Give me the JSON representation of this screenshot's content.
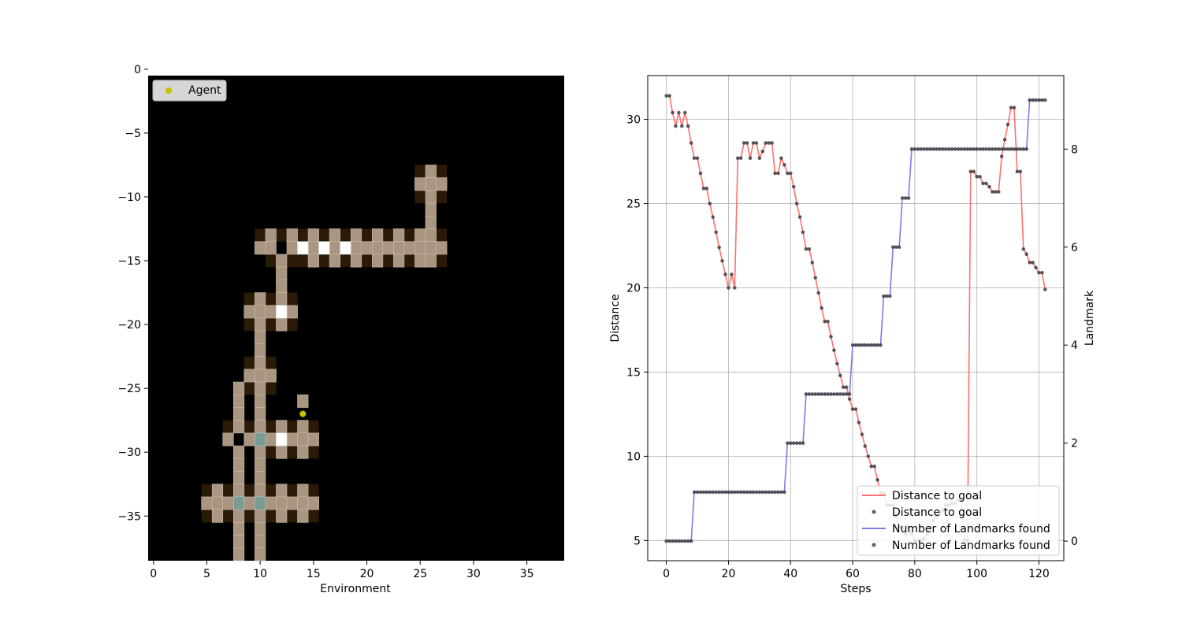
{
  "chart_data": [
    {
      "type": "heatmap",
      "xlabel": "Environment",
      "ylabel": "",
      "xlim": [
        -0.5,
        38.5
      ],
      "ylim": [
        -0.5,
        -38.5
      ],
      "xticks": [
        0,
        5,
        10,
        15,
        20,
        25,
        30,
        35
      ],
      "yticks": [
        0,
        -5,
        -10,
        -15,
        -20,
        -25,
        -30,
        -35
      ],
      "legend": {
        "entries": [
          "Agent"
        ],
        "placement": "top-left"
      },
      "agent": {
        "x": 14,
        "y": -27,
        "label": "Agent"
      },
      "colors": {
        "background": "#000000",
        "wall": "#2a1a08",
        "floor": "#a99580",
        "landmark": "#ffffff",
        "special": "#7a9a94",
        "agent": "#c4c400"
      },
      "walls": [
        [
          25,
          -8
        ],
        [
          27,
          -8
        ],
        [
          25,
          -10
        ],
        [
          27,
          -10
        ],
        [
          10,
          -13
        ],
        [
          12,
          -13
        ],
        [
          14,
          -13
        ],
        [
          16,
          -13
        ],
        [
          18,
          -13
        ],
        [
          20,
          -13
        ],
        [
          22,
          -13
        ],
        [
          24,
          -13
        ],
        [
          27,
          -13
        ],
        [
          11,
          -15
        ],
        [
          13,
          -15
        ],
        [
          14,
          -15
        ],
        [
          16,
          -15
        ],
        [
          18,
          -15
        ],
        [
          20,
          -15
        ],
        [
          22,
          -15
        ],
        [
          24,
          -15
        ],
        [
          27,
          -15
        ],
        [
          9,
          -18
        ],
        [
          11,
          -18
        ],
        [
          13,
          -18
        ],
        [
          9,
          -20
        ],
        [
          11,
          -20
        ],
        [
          13,
          -20
        ],
        [
          9,
          -23
        ],
        [
          11,
          -23
        ],
        [
          9,
          -25
        ],
        [
          11,
          -25
        ],
        [
          7,
          -28
        ],
        [
          9,
          -28
        ],
        [
          11,
          -28
        ],
        [
          13,
          -28
        ],
        [
          15,
          -28
        ],
        [
          11,
          -30
        ],
        [
          13,
          -30
        ],
        [
          15,
          -30
        ],
        [
          5,
          -33
        ],
        [
          7,
          -33
        ],
        [
          9,
          -33
        ],
        [
          11,
          -33
        ],
        [
          13,
          -33
        ],
        [
          15,
          -33
        ],
        [
          5,
          -35
        ],
        [
          7,
          -35
        ],
        [
          9,
          -35
        ],
        [
          11,
          -35
        ],
        [
          13,
          -35
        ],
        [
          15,
          -35
        ]
      ],
      "floor": [
        [
          26,
          -8
        ],
        [
          25,
          -9
        ],
        [
          26,
          -9
        ],
        [
          27,
          -9
        ],
        [
          26,
          -10
        ],
        [
          26,
          -11
        ],
        [
          26,
          -12
        ],
        [
          11,
          -13
        ],
        [
          13,
          -13
        ],
        [
          15,
          -13
        ],
        [
          17,
          -13
        ],
        [
          19,
          -13
        ],
        [
          21,
          -13
        ],
        [
          23,
          -13
        ],
        [
          25,
          -13
        ],
        [
          26,
          -13
        ],
        [
          10,
          -14
        ],
        [
          11,
          -14
        ],
        [
          13,
          -14
        ],
        [
          15,
          -14
        ],
        [
          17,
          -14
        ],
        [
          19,
          -14
        ],
        [
          20,
          -14
        ],
        [
          21,
          -14
        ],
        [
          22,
          -14
        ],
        [
          23,
          -14
        ],
        [
          24,
          -14
        ],
        [
          25,
          -14
        ],
        [
          26,
          -14
        ],
        [
          27,
          -14
        ],
        [
          12,
          -15
        ],
        [
          15,
          -15
        ],
        [
          17,
          -15
        ],
        [
          19,
          -15
        ],
        [
          21,
          -15
        ],
        [
          23,
          -15
        ],
        [
          25,
          -15
        ],
        [
          26,
          -15
        ],
        [
          12,
          -16
        ],
        [
          12,
          -17
        ],
        [
          10,
          -18
        ],
        [
          12,
          -18
        ],
        [
          9,
          -19
        ],
        [
          10,
          -19
        ],
        [
          11,
          -19
        ],
        [
          13,
          -19
        ],
        [
          10,
          -20
        ],
        [
          12,
          -20
        ],
        [
          10,
          -21
        ],
        [
          10,
          -22
        ],
        [
          10,
          -23
        ],
        [
          10,
          -24
        ],
        [
          9,
          -24
        ],
        [
          11,
          -24
        ],
        [
          10,
          -25
        ],
        [
          8,
          -25
        ],
        [
          8,
          -26
        ],
        [
          10,
          -26
        ],
        [
          14,
          -26
        ],
        [
          8,
          -27
        ],
        [
          10,
          -27
        ],
        [
          8,
          -28
        ],
        [
          10,
          -28
        ],
        [
          14,
          -28
        ],
        [
          10,
          -28
        ],
        [
          12,
          -28
        ],
        [
          7,
          -29
        ],
        [
          9,
          -29
        ],
        [
          11,
          -29
        ],
        [
          13,
          -29
        ],
        [
          14,
          -29
        ],
        [
          15,
          -29
        ],
        [
          8,
          -30
        ],
        [
          10,
          -30
        ],
        [
          12,
          -30
        ],
        [
          14,
          -30
        ],
        [
          8,
          -31
        ],
        [
          10,
          -31
        ],
        [
          8,
          -32
        ],
        [
          10,
          -32
        ],
        [
          6,
          -33
        ],
        [
          8,
          -33
        ],
        [
          10,
          -33
        ],
        [
          12,
          -33
        ],
        [
          14,
          -33
        ],
        [
          5,
          -34
        ],
        [
          6,
          -34
        ],
        [
          7,
          -34
        ],
        [
          9,
          -34
        ],
        [
          11,
          -34
        ],
        [
          12,
          -34
        ],
        [
          13,
          -34
        ],
        [
          14,
          -34
        ],
        [
          15,
          -34
        ],
        [
          6,
          -35
        ],
        [
          8,
          -35
        ],
        [
          10,
          -35
        ],
        [
          12,
          -35
        ],
        [
          14,
          -35
        ],
        [
          8,
          -36
        ],
        [
          10,
          -36
        ],
        [
          8,
          -37
        ],
        [
          10,
          -37
        ],
        [
          8,
          -38
        ],
        [
          10,
          -38
        ]
      ],
      "landmarks": [
        [
          14,
          -14
        ],
        [
          16,
          -14
        ],
        [
          18,
          -14
        ],
        [
          12,
          -19
        ],
        [
          12,
          -29
        ]
      ],
      "special": [
        [
          10,
          -29
        ],
        [
          8,
          -34
        ],
        [
          10,
          -34
        ]
      ]
    },
    {
      "type": "line",
      "xlabel": "Steps",
      "ylabel": "Distance",
      "y2label": "Landmark",
      "xlim": [
        -6,
        128
      ],
      "ylim": [
        3.8,
        32.6
      ],
      "y2lim": [
        -0.4,
        9.5
      ],
      "xticks": [
        0,
        20,
        40,
        60,
        80,
        100,
        120
      ],
      "yticks": [
        5,
        10,
        15,
        20,
        25,
        30
      ],
      "y2ticks": [
        0,
        2,
        4,
        6,
        8
      ],
      "grid": true,
      "legend": {
        "placement": "bottom-right",
        "entries": [
          "Distance to goal",
          "Distance to goal",
          "Number of Landmarks found",
          "Number of Landmarks found"
        ]
      },
      "colors": {
        "distance": "#ff7070",
        "landmarks": "#7a7aee",
        "markers": "#3a3a3a"
      },
      "series": [
        {
          "name": "Distance to goal",
          "axis": "left",
          "values": [
            31.4,
            31.4,
            30.4,
            29.6,
            30.4,
            29.6,
            30.4,
            29.6,
            28.6,
            27.7,
            27.7,
            26.8,
            25.9,
            25.9,
            25.0,
            24.2,
            23.3,
            22.4,
            21.6,
            20.8,
            20.0,
            20.8,
            20.0,
            27.7,
            27.7,
            28.6,
            28.6,
            27.7,
            28.6,
            28.6,
            27.7,
            28.1,
            28.6,
            28.6,
            28.6,
            26.8,
            26.8,
            27.7,
            27.3,
            26.8,
            26.8,
            26.0,
            25.0,
            24.2,
            23.3,
            22.3,
            22.3,
            21.5,
            20.6,
            19.7,
            18.8,
            18.0,
            18.0,
            17.1,
            16.3,
            15.5,
            14.8,
            14.1,
            14.1,
            13.4,
            12.8,
            12.8,
            12.0,
            11.3,
            10.6,
            10.0,
            9.4,
            9.4,
            8.6,
            7.8,
            7.8,
            7.1,
            7.1,
            7.1,
            6.4,
            5.8,
            5.8,
            5.4,
            5.8,
            5.4,
            5.0,
            5.0,
            5.0,
            5.1,
            5.4,
            5.8,
            6.2,
            6.4,
            6.6,
            6.8,
            7.1,
            7.1,
            7.2,
            7.2,
            7.4,
            7.4,
            5.0,
            5.0,
            26.9,
            26.9,
            26.6,
            26.6,
            26.2,
            26.2,
            26.0,
            25.7,
            25.7,
            25.7,
            27.8,
            28.8,
            29.7,
            30.7,
            30.7,
            26.9,
            26.9,
            22.3,
            22.0,
            21.5,
            21.5,
            21.2,
            20.9,
            20.9,
            19.9
          ]
        },
        {
          "name": "Number of Landmarks found",
          "axis": "right",
          "values": [
            0,
            0,
            0,
            0,
            0,
            0,
            0,
            0,
            0,
            1,
            1,
            1,
            1,
            1,
            1,
            1,
            1,
            1,
            1,
            1,
            1,
            1,
            1,
            1,
            1,
            1,
            1,
            1,
            1,
            1,
            1,
            1,
            1,
            1,
            1,
            1,
            1,
            1,
            1,
            2,
            2,
            2,
            2,
            2,
            2,
            3,
            3,
            3,
            3,
            3,
            3,
            3,
            3,
            3,
            3,
            3,
            3,
            3,
            3,
            3,
            4,
            4,
            4,
            4,
            4,
            4,
            4,
            4,
            4,
            4,
            5,
            5,
            5,
            6,
            6,
            6,
            7,
            7,
            7,
            8,
            8,
            8,
            8,
            8,
            8,
            8,
            8,
            8,
            8,
            8,
            8,
            8,
            8,
            8,
            8,
            8,
            8,
            8,
            8,
            8,
            8,
            8,
            8,
            8,
            8,
            8,
            8,
            8,
            8,
            8,
            8,
            8,
            8,
            8,
            8,
            8,
            8,
            9,
            9,
            9,
            9,
            9,
            9
          ]
        }
      ]
    }
  ]
}
